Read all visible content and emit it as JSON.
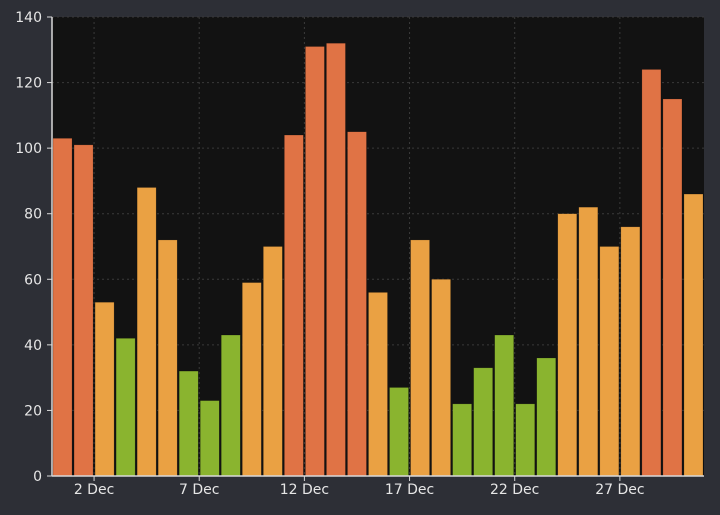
{
  "chart_data": {
    "type": "bar",
    "title": "",
    "xlabel": "",
    "ylabel": "",
    "ylim": [
      0,
      140
    ],
    "yticks": [
      0,
      20,
      40,
      60,
      80,
      100,
      120,
      140
    ],
    "grid": true,
    "categories": [
      "1 Dec",
      "2 Dec",
      "3 Dec",
      "4 Dec",
      "5 Dec",
      "6 Dec",
      "7 Dec",
      "8 Dec",
      "9 Dec",
      "10 Dec",
      "11 Dec",
      "12 Dec",
      "13 Dec",
      "14 Dec",
      "15 Dec",
      "16 Dec",
      "17 Dec",
      "18 Dec",
      "19 Dec",
      "20 Dec",
      "21 Dec",
      "22 Dec",
      "23 Dec",
      "24 Dec",
      "25 Dec",
      "26 Dec",
      "27 Dec",
      "28 Dec",
      "29 Dec",
      "30 Dec",
      "31 Dec"
    ],
    "values": [
      103,
      101,
      53,
      42,
      88,
      72,
      32,
      23,
      43,
      59,
      70,
      104,
      131,
      132,
      105,
      56,
      27,
      72,
      60,
      22,
      33,
      43,
      22,
      36,
      80,
      82,
      70,
      76,
      124,
      115,
      86
    ],
    "x_tick_labels": [
      "2 Dec",
      "7 Dec",
      "12 Dec",
      "17 Dec",
      "22 Dec",
      "27 Dec"
    ],
    "color_thresholds": {
      "high": {
        "min": 100,
        "color": "#e07345"
      },
      "mid": {
        "min": 50,
        "color": "#eaa143"
      },
      "low": {
        "min": 0,
        "color": "#8ab42f"
      }
    }
  },
  "colors": {
    "background": "#2d2f36",
    "plot_background": "#121212",
    "grid": "#3a3a3a",
    "axis": "#d9d9d9",
    "text": "#e6e6e6"
  }
}
